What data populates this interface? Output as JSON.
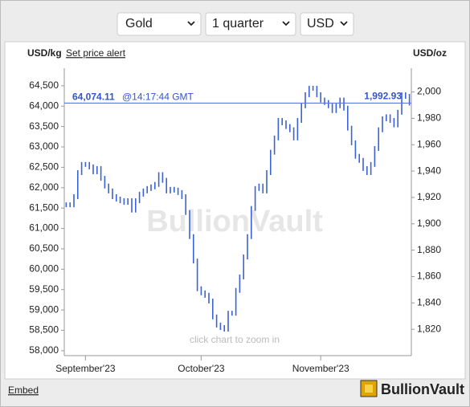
{
  "controls": {
    "metal": "Gold",
    "period": "1 quarter",
    "currency": "USD"
  },
  "chart_data": {
    "type": "price-ticks",
    "left_unit": "USD/kg",
    "alert_link": "Set price alert",
    "right_unit": "USD/oz",
    "watermark": "BullionVault",
    "hint": "click chart to zoom in",
    "color": "#3b63d6",
    "categories": [
      null,
      null,
      null,
      null,
      null,
      "September'23",
      null,
      null,
      null,
      null,
      null,
      null,
      null,
      null,
      null,
      null,
      null,
      null,
      null,
      null,
      null,
      null,
      null,
      null,
      null,
      null,
      null,
      null,
      null,
      null,
      null,
      null,
      null,
      null,
      null,
      "October'23",
      null,
      null,
      null,
      null,
      null,
      null,
      null,
      null,
      null,
      null,
      null,
      null,
      null,
      null,
      null,
      null,
      null,
      null,
      null,
      null,
      null,
      null,
      null,
      null,
      null,
      null,
      null,
      null,
      null,
      null,
      "November'23",
      null,
      null,
      null,
      null,
      null,
      null,
      null,
      null,
      null,
      null,
      null,
      null,
      null,
      null,
      null,
      null,
      null,
      null,
      null,
      null,
      null,
      null,
      null
    ],
    "values": [
      61580,
      61580,
      61780,
      62370,
      62570,
      62570,
      62510,
      62390,
      62470,
      62230,
      62040,
      61920,
      61780,
      61720,
      61680,
      61640,
      61680,
      61450,
      61680,
      61840,
      61920,
      61980,
      62020,
      62080,
      62320,
      62180,
      61920,
      61960,
      61940,
      61880,
      61780,
      61390,
      60800,
      60200,
      59520,
      59420,
      59360,
      59220,
      58830,
      58630,
      58570,
      58530,
      58920,
      58920,
      59480,
      59810,
      60300,
      60800,
      61490,
      61980,
      62040,
      61920,
      62370,
      62870,
      63220,
      63650,
      63590,
      63500,
      63420,
      63220,
      63650,
      64010,
      64280,
      64440,
      64440,
      64280,
      64150,
      64090,
      64010,
      63890,
      64010,
      64150,
      63950,
      63460,
      63100,
      62770,
      62670,
      62470,
      62370,
      62570,
      62960,
      63420,
      63690,
      63740,
      63650,
      63540,
      63850,
      64280,
      64240,
      64074.11
    ],
    "ylim": [
      57880,
      64930
    ],
    "yticks": [
      {
        "value": 58000,
        "label": "58,000"
      },
      {
        "value": 58500,
        "label": "58,500"
      },
      {
        "value": 59000,
        "label": "59,000"
      },
      {
        "value": 59500,
        "label": "59,500"
      },
      {
        "value": 60000,
        "label": "60,000"
      },
      {
        "value": 60500,
        "label": "60,500"
      },
      {
        "value": 61000,
        "label": "61,000"
      },
      {
        "value": 61500,
        "label": "61,500"
      },
      {
        "value": 62000,
        "label": "62,000"
      },
      {
        "value": 62500,
        "label": "62,500"
      },
      {
        "value": 63000,
        "label": "63,000"
      },
      {
        "value": 63500,
        "label": "63,500"
      },
      {
        "value": 64000,
        "label": "64,000"
      },
      {
        "value": 64500,
        "label": "64,500"
      }
    ],
    "y2lim": [
      1800,
      2018
    ],
    "y2ticks": [
      {
        "value": 1820,
        "label": "1,820"
      },
      {
        "value": 1840,
        "label": "1,840"
      },
      {
        "value": 1860,
        "label": "1,860"
      },
      {
        "value": 1880,
        "label": "1,880"
      },
      {
        "value": 1900,
        "label": "1,900"
      },
      {
        "value": 1920,
        "label": "1,920"
      },
      {
        "value": 1940,
        "label": "1,940"
      },
      {
        "value": 1960,
        "label": "1,960"
      },
      {
        "value": 1980,
        "label": "1,980"
      },
      {
        "value": 2000,
        "label": "2,000"
      }
    ],
    "current_price": {
      "usd_kg": 64074.11,
      "usd_kg_label": "64,074.11",
      "time": "@14:17:44 GMT",
      "usd_oz": 1992.93,
      "usd_oz_label": "1,992.93"
    }
  },
  "footer": {
    "embed": "Embed",
    "brand": "BullionVault"
  }
}
